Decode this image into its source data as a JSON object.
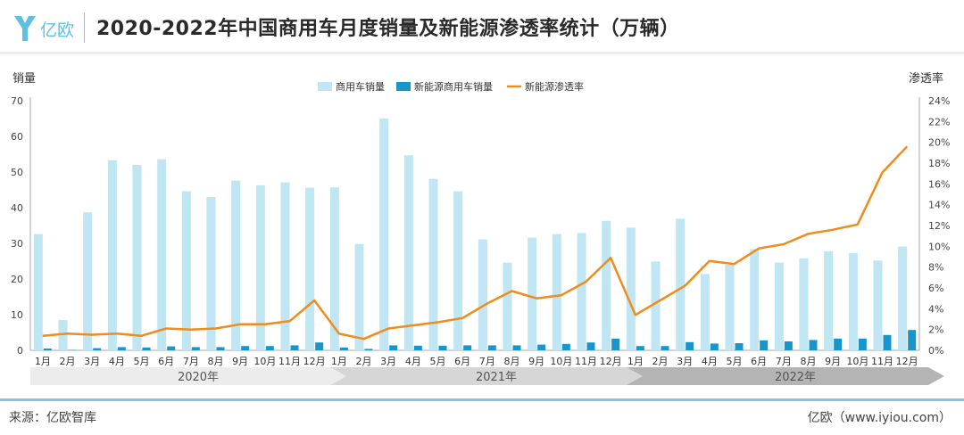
{
  "header": {
    "logo_text": "亿欧",
    "title": "2020-2022年中国商用车月度销量及新能源渗透率统计（万辆）"
  },
  "footer": {
    "source": "来源：亿欧智库",
    "site": "亿欧（www.iyiou.com）"
  },
  "colors": {
    "total_bar": "#bfe6f2",
    "nev_bar": "#1a95cb",
    "rate_line": "#f08c1c",
    "footer_line": "#8ac3dd"
  },
  "chart_data": {
    "type": "bar",
    "ylabel": "销量",
    "y2label": "渗透率",
    "ylim": [
      0,
      70
    ],
    "y2lim": [
      0,
      24
    ],
    "yticks": [
      0,
      10,
      20,
      30,
      40,
      50,
      60,
      70
    ],
    "y2ticks": [
      "0%",
      "2%",
      "4%",
      "6%",
      "8%",
      "10%",
      "12%",
      "14%",
      "16%",
      "18%",
      "20%",
      "22%",
      "24%"
    ],
    "legend_position": "top-center",
    "categories": [
      "1月",
      "2月",
      "3月",
      "4月",
      "5月",
      "6月",
      "7月",
      "8月",
      "9月",
      "10月",
      "11月",
      "12月",
      "1月",
      "2月",
      "3月",
      "4月",
      "5月",
      "6月",
      "7月",
      "8月",
      "9月",
      "10月",
      "11月",
      "12月",
      "1月",
      "2月",
      "3月",
      "4月",
      "5月",
      "6月",
      "7月",
      "8月",
      "9月",
      "10月",
      "11月",
      "12月"
    ],
    "years": [
      "2020年",
      "2021年",
      "2022年"
    ],
    "series": [
      {
        "name": "商用车销量",
        "kind": "bar",
        "values": [
          32.6,
          8.5,
          38.7,
          53.3,
          52.0,
          53.6,
          44.6,
          43.0,
          47.6,
          46.3,
          47.1,
          45.6,
          45.7,
          29.8,
          65.0,
          54.7,
          48.1,
          44.6,
          31.1,
          24.6,
          31.6,
          32.6,
          32.9,
          36.3,
          34.4,
          24.9,
          36.9,
          21.4,
          24.0,
          28.4,
          24.6,
          25.8,
          27.8,
          27.3,
          25.2,
          29.1
        ]
      },
      {
        "name": "新能源商用车销量",
        "kind": "bar",
        "values": [
          0.5,
          0.1,
          0.6,
          0.9,
          0.8,
          1.1,
          0.9,
          0.9,
          1.2,
          1.2,
          1.4,
          2.2,
          0.8,
          0.4,
          1.4,
          1.3,
          1.3,
          1.4,
          1.4,
          1.4,
          1.6,
          1.8,
          2.2,
          3.3,
          1.2,
          1.2,
          2.3,
          1.9,
          2.0,
          2.8,
          2.5,
          2.9,
          3.3,
          3.3,
          4.3,
          5.7
        ]
      },
      {
        "name": "新能源渗透率",
        "kind": "line",
        "unit": "%",
        "values": [
          1.4,
          1.6,
          1.5,
          1.6,
          1.4,
          2.1,
          2.0,
          2.1,
          2.5,
          2.5,
          2.8,
          4.8,
          1.6,
          1.1,
          2.1,
          2.4,
          2.7,
          3.1,
          4.5,
          5.7,
          5.0,
          5.3,
          6.6,
          8.9,
          3.4,
          4.8,
          6.2,
          8.6,
          8.3,
          9.8,
          10.2,
          11.2,
          11.6,
          12.1,
          17.1,
          19.6
        ]
      }
    ]
  }
}
